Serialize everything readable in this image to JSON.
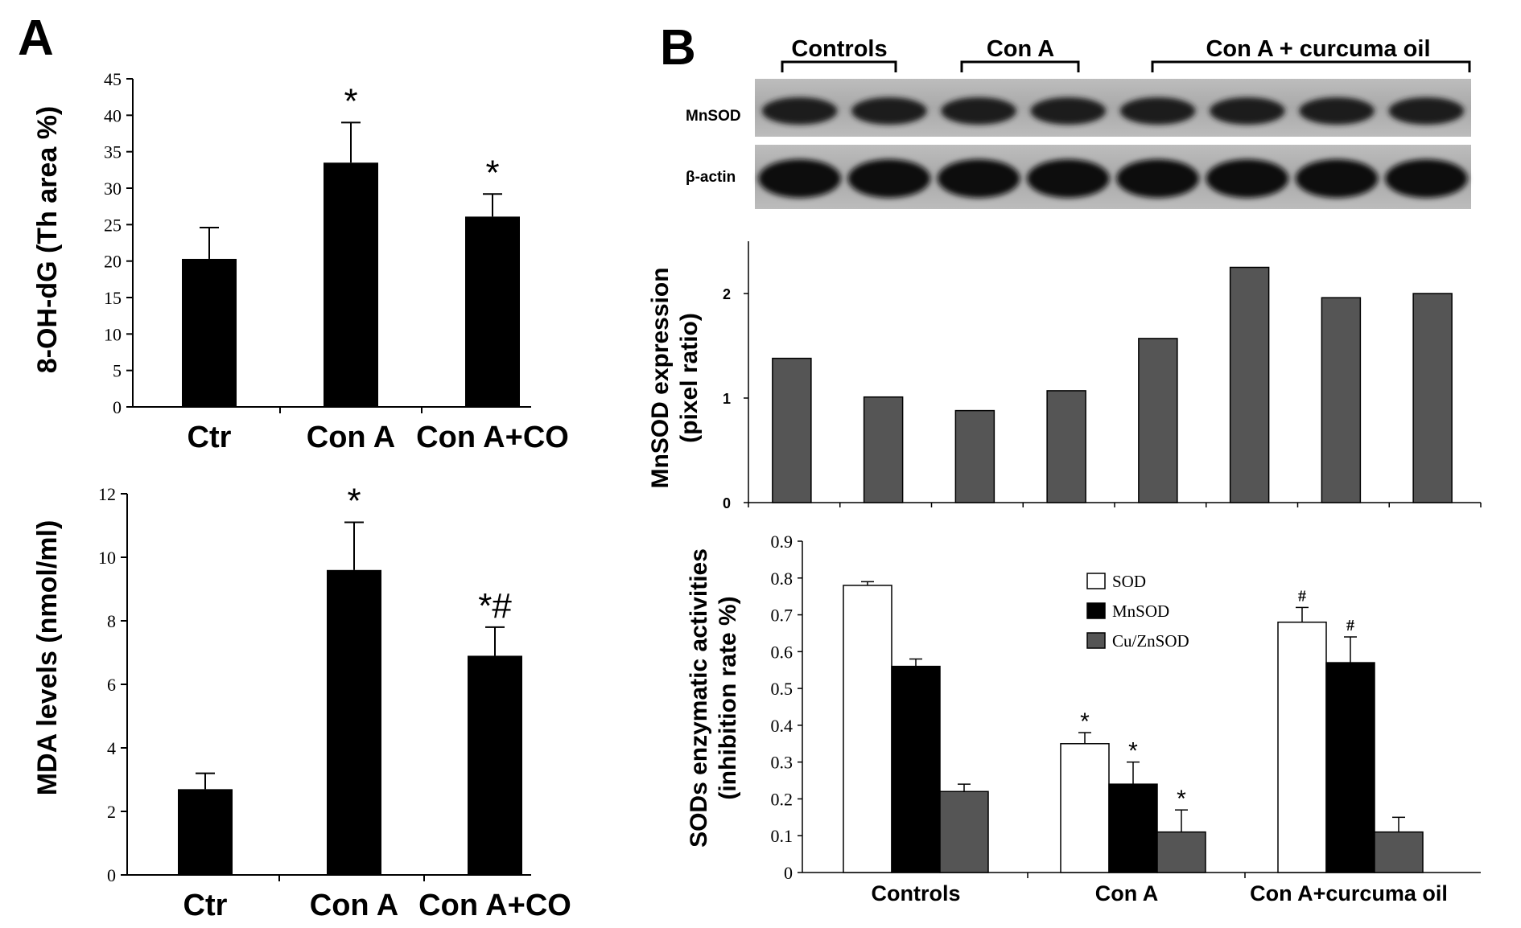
{
  "panels": {
    "a_label": "A",
    "b_label": "B"
  },
  "blot": {
    "groups": [
      "Controls",
      "Con A",
      "Con A + curcuma oil"
    ],
    "row_labels": [
      "MnSOD",
      "β-actin"
    ]
  },
  "colors": {
    "black_bar": "#000000",
    "gray_bar": "#555555",
    "white_bar": "#ffffff"
  },
  "chart_data": [
    {
      "id": "ohdg",
      "type": "bar",
      "ylabel": "8-OH-dG (Th area %)",
      "categories": [
        "Ctr",
        "Con A",
        "Con A+CO"
      ],
      "values": [
        20.3,
        33.5,
        26.1
      ],
      "errors": [
        4.3,
        5.5,
        3.1
      ],
      "annotations": [
        "",
        "*",
        "*"
      ],
      "ylim": [
        0,
        45
      ],
      "yticks": [
        0,
        5,
        10,
        15,
        20,
        25,
        30,
        35,
        40,
        45
      ]
    },
    {
      "id": "mda",
      "type": "bar",
      "ylabel": "MDA levels (nmol/ml)",
      "categories": [
        "Ctr",
        "Con A",
        "Con A+CO"
      ],
      "values": [
        2.7,
        9.6,
        6.9
      ],
      "errors": [
        0.5,
        1.5,
        0.9
      ],
      "annotations": [
        "",
        "*",
        "*#"
      ],
      "ylim": [
        0,
        12
      ],
      "yticks": [
        0,
        2,
        4,
        6,
        8,
        10,
        12
      ]
    },
    {
      "id": "mnsod_expr",
      "type": "bar",
      "ylabel_lines": [
        "MnSOD expression",
        "(pixel ratio)"
      ],
      "values": [
        1.38,
        1.01,
        0.88,
        1.07,
        1.57,
        2.25,
        1.96,
        2.0
      ],
      "ylim": [
        0,
        2.5
      ],
      "yticks": [
        0,
        1,
        2
      ]
    },
    {
      "id": "sod_activity",
      "type": "bar",
      "ylabel_lines": [
        "SODs enzymatic activities",
        "(inhibition rate %)"
      ],
      "categories": [
        "Controls",
        "Con A",
        "Con A+curcuma oil"
      ],
      "series": [
        {
          "name": "SOD",
          "values": [
            0.78,
            0.35,
            0.68
          ],
          "errors": [
            0.01,
            0.03,
            0.04
          ],
          "annotations": [
            "",
            "*",
            "#"
          ]
        },
        {
          "name": "MnSOD",
          "values": [
            0.56,
            0.24,
            0.57
          ],
          "errors": [
            0.02,
            0.06,
            0.07
          ],
          "annotations": [
            "",
            "*",
            "#"
          ]
        },
        {
          "name": "Cu/ZnSOD",
          "values": [
            0.22,
            0.11,
            0.11
          ],
          "errors": [
            0.02,
            0.06,
            0.04
          ],
          "annotations": [
            "",
            "*",
            ""
          ]
        }
      ],
      "ylim": [
        0,
        0.9
      ],
      "yticks": [
        "0",
        "0.1",
        "0.2",
        "0.3",
        "0.4",
        "0.5",
        "0.6",
        "0.7",
        "0.8",
        "0.9"
      ]
    }
  ]
}
